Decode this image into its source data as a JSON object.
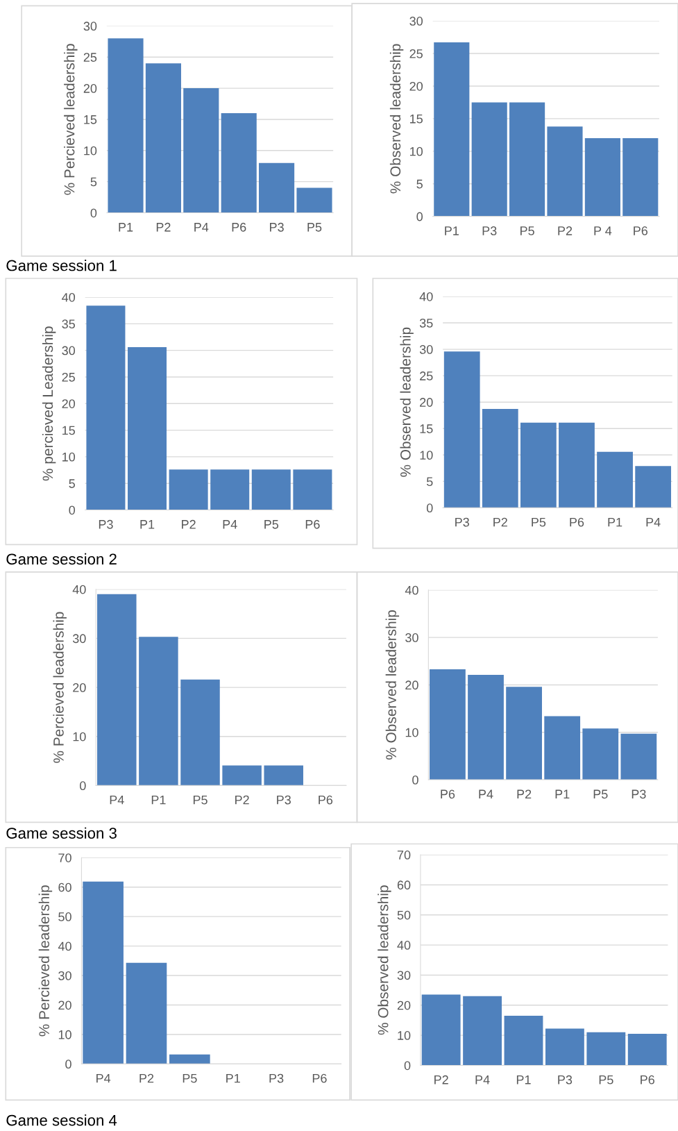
{
  "chart_data": [
    {
      "type": "bar",
      "categories": [
        "P1",
        "P2",
        "P4",
        "P6",
        "P3",
        "P5"
      ],
      "values": [
        28,
        24,
        20,
        16,
        8,
        4
      ],
      "color": "#4f81bd",
      "ylabel": "% Percieved leadership",
      "ylim": [
        0,
        30
      ],
      "yticks": [
        0,
        5,
        10,
        15,
        20,
        25,
        30
      ],
      "grid": "y",
      "annotations": [
        "Game session 1"
      ]
    },
    {
      "type": "bar",
      "categories": [
        "P1",
        "P3",
        "P5",
        "P2",
        "P 4",
        "P6"
      ],
      "values": [
        26.7,
        17.5,
        17.5,
        13.8,
        12.0,
        12.0
      ],
      "color": "#4f81bd",
      "ylabel": "% Observed leadership",
      "ylim": [
        0,
        30
      ],
      "yticks": [
        0,
        5,
        10,
        15,
        20,
        25,
        30
      ],
      "grid": "y"
    },
    {
      "type": "bar",
      "categories": [
        "P3",
        "P1",
        "P2",
        "P4",
        "P5",
        "P6"
      ],
      "values": [
        38.4,
        30.6,
        7.6,
        7.6,
        7.6,
        7.6
      ],
      "color": "#4f81bd",
      "ylabel": "% percieved Leadership",
      "ylim": [
        0,
        40
      ],
      "yticks": [
        0,
        5,
        10,
        15,
        20,
        25,
        30,
        35,
        40
      ],
      "grid": "y",
      "annotations": [
        "Game session 2"
      ]
    },
    {
      "type": "bar",
      "categories": [
        "P3",
        "P2",
        "P5",
        "P6",
        "P1",
        "P4"
      ],
      "values": [
        29.6,
        18.7,
        16.1,
        16.1,
        10.6,
        7.9
      ],
      "color": "#4f81bd",
      "ylabel": "% Observed leadership",
      "ylim": [
        0,
        40
      ],
      "yticks": [
        0,
        5,
        10,
        15,
        20,
        25,
        30,
        35,
        40
      ],
      "grid": "y"
    },
    {
      "type": "bar",
      "categories": [
        "P4",
        "P1",
        "P5",
        "P2",
        "P3",
        "P6"
      ],
      "values": [
        39.0,
        30.3,
        21.6,
        4.1,
        4.1,
        0
      ],
      "color": "#4f81bd",
      "ylabel": "% Percieved leadership",
      "ylim": [
        0,
        40
      ],
      "yticks": [
        0,
        10,
        20,
        30,
        40
      ],
      "grid": "y",
      "annotations": [
        "Game session 3"
      ]
    },
    {
      "type": "bar",
      "categories": [
        "P6",
        "P4",
        "P2",
        "P1",
        "P5",
        "P3"
      ],
      "values": [
        23.3,
        22.1,
        19.6,
        13.4,
        10.8,
        9.7
      ],
      "color": "#4f81bd",
      "ylabel": "% Observed leadership",
      "ylim": [
        0,
        40
      ],
      "yticks": [
        0,
        10,
        20,
        30,
        40
      ],
      "grid": "y"
    },
    {
      "type": "bar",
      "categories": [
        "P4",
        "P2",
        "P5",
        "P1",
        "P3",
        "P6"
      ],
      "values": [
        61.9,
        34.3,
        3.2,
        0,
        0,
        0
      ],
      "color": "#4f81bd",
      "ylabel": "% Percieved leadership",
      "ylim": [
        0,
        70
      ],
      "yticks": [
        0,
        10,
        20,
        30,
        40,
        50,
        60,
        70
      ],
      "grid": "y",
      "annotations": [
        "Game session 4"
      ]
    },
    {
      "type": "bar",
      "categories": [
        "P2",
        "P4",
        "P1",
        "P3",
        "P5",
        "P6"
      ],
      "values": [
        23.5,
        23.0,
        16.5,
        12.2,
        11.0,
        10.5
      ],
      "color": "#4f81bd",
      "ylabel": "% Observed leadership",
      "ylim": [
        0,
        70
      ],
      "yticks": [
        0,
        10,
        20,
        30,
        40,
        50,
        60,
        70
      ],
      "grid": "y"
    }
  ]
}
